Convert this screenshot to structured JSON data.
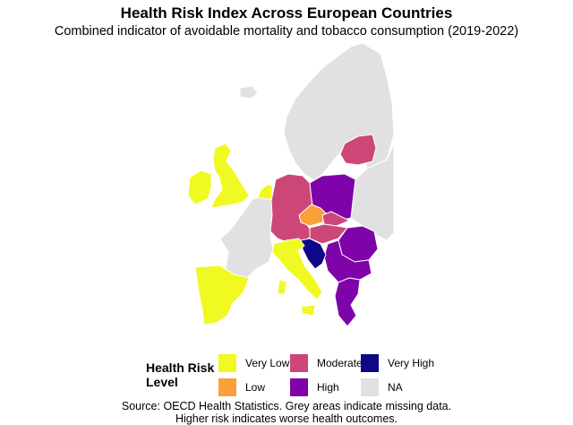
{
  "header": {
    "title": "Health Risk Index Across European Countries",
    "subtitle": "Combined indicator of avoidable mortality and tobacco consumption (2019-2022)"
  },
  "colors": {
    "very_low": "#f0f921",
    "low": "#fb9f3a",
    "moderate": "#cc4778",
    "high": "#7e03a8",
    "very_high": "#0d0887",
    "na": "#e1e1e1",
    "border": "#ffffff"
  },
  "legend": {
    "title_line1": "Health Risk",
    "title_line2": "Level",
    "items": [
      {
        "label": "Very Low",
        "color": "#f0f921"
      },
      {
        "label": "Low",
        "color": "#fb9f3a"
      },
      {
        "label": "Moderate",
        "color": "#cc4778"
      },
      {
        "label": "High",
        "color": "#7e03a8"
      },
      {
        "label": "Very High",
        "color": "#0d0887"
      },
      {
        "label": "NA",
        "color": "#e1e1e1"
      }
    ]
  },
  "regions": [
    {
      "level": "na",
      "desc": "norway-sweden-finland"
    },
    {
      "level": "na",
      "desc": "iceland"
    },
    {
      "level": "very_low",
      "desc": "great-britain"
    },
    {
      "level": "very_low",
      "desc": "ireland"
    },
    {
      "level": "very_low",
      "desc": "netherlands"
    },
    {
      "level": "moderate",
      "desc": "germany"
    },
    {
      "level": "high",
      "desc": "poland"
    },
    {
      "level": "low",
      "desc": "czechia"
    },
    {
      "level": "moderate",
      "desc": "slovakia"
    },
    {
      "level": "moderate",
      "desc": "hungary"
    },
    {
      "level": "very_high",
      "desc": "croatia"
    },
    {
      "level": "high",
      "desc": "romania"
    },
    {
      "level": "high",
      "desc": "balkans"
    },
    {
      "level": "high",
      "desc": "greece"
    },
    {
      "level": "very_low",
      "desc": "italy"
    },
    {
      "level": "very_low",
      "desc": "spain-portugal"
    },
    {
      "level": "moderate",
      "desc": "latvia-estonia"
    },
    {
      "level": "na",
      "desc": "france"
    },
    {
      "level": "na",
      "desc": "eastern-europe"
    }
  ],
  "caption": {
    "line1": "Source: OECD Health Statistics. Grey areas indicate missing data.",
    "line2": "Higher risk indicates worse health outcomes."
  }
}
